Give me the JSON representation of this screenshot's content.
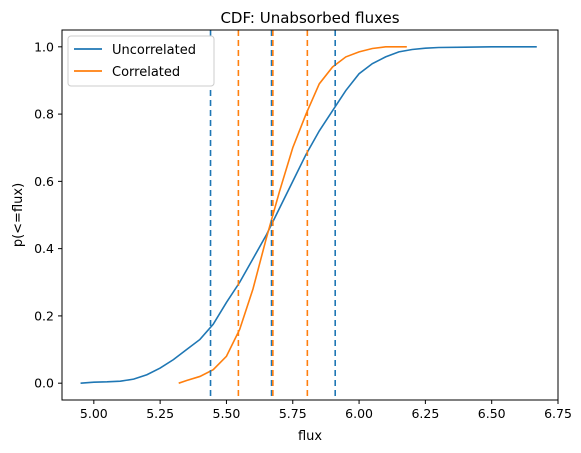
{
  "chart_data": {
    "type": "line",
    "title": "CDF: Unabsorbed fluxes",
    "xlabel": "flux",
    "ylabel": "p(<=flux)",
    "xlim": [
      4.88,
      6.75
    ],
    "ylim": [
      -0.05,
      1.05
    ],
    "xticks": [
      5.0,
      5.25,
      5.5,
      5.75,
      6.0,
      6.25,
      6.5,
      6.75
    ],
    "xtick_labels": [
      "5.00",
      "5.25",
      "5.50",
      "5.75",
      "6.00",
      "6.25",
      "6.50",
      "6.75"
    ],
    "yticks": [
      0.0,
      0.2,
      0.4,
      0.6,
      0.8,
      1.0
    ],
    "ytick_labels": [
      "0.0",
      "0.2",
      "0.4",
      "0.6",
      "0.8",
      "1.0"
    ],
    "grid": false,
    "legend_position": "upper left",
    "series": [
      {
        "name": "Uncorrelated",
        "color": "#1f77b4",
        "x": [
          4.95,
          5.0,
          5.05,
          5.1,
          5.15,
          5.2,
          5.25,
          5.3,
          5.35,
          5.4,
          5.45,
          5.5,
          5.55,
          5.6,
          5.65,
          5.7,
          5.75,
          5.8,
          5.85,
          5.9,
          5.95,
          6.0,
          6.05,
          6.1,
          6.15,
          6.2,
          6.25,
          6.3,
          6.4,
          6.5,
          6.67
        ],
        "y": [
          0.0,
          0.003,
          0.004,
          0.006,
          0.012,
          0.025,
          0.045,
          0.07,
          0.1,
          0.13,
          0.175,
          0.24,
          0.3,
          0.37,
          0.44,
          0.52,
          0.6,
          0.68,
          0.75,
          0.81,
          0.87,
          0.92,
          0.95,
          0.97,
          0.985,
          0.992,
          0.996,
          0.998,
          0.999,
          1.0,
          1.0
        ]
      },
      {
        "name": "Correlated",
        "color": "#ff7f0e",
        "x": [
          5.32,
          5.35,
          5.4,
          5.45,
          5.5,
          5.55,
          5.6,
          5.65,
          5.7,
          5.75,
          5.8,
          5.85,
          5.9,
          5.95,
          6.0,
          6.05,
          6.1,
          6.18
        ],
        "y": [
          0.0,
          0.008,
          0.02,
          0.04,
          0.08,
          0.16,
          0.28,
          0.43,
          0.57,
          0.7,
          0.8,
          0.89,
          0.94,
          0.97,
          0.985,
          0.995,
          1.0,
          1.0
        ]
      }
    ],
    "vlines": [
      {
        "x": 5.44,
        "color": "#1f77b4",
        "style": "dashed"
      },
      {
        "x": 5.67,
        "color": "#1f77b4",
        "style": "dashed"
      },
      {
        "x": 5.91,
        "color": "#1f77b4",
        "style": "dashed"
      },
      {
        "x": 5.545,
        "color": "#ff7f0e",
        "style": "dashed"
      },
      {
        "x": 5.675,
        "color": "#ff7f0e",
        "style": "dashed"
      },
      {
        "x": 5.805,
        "color": "#ff7f0e",
        "style": "dashed"
      }
    ]
  }
}
